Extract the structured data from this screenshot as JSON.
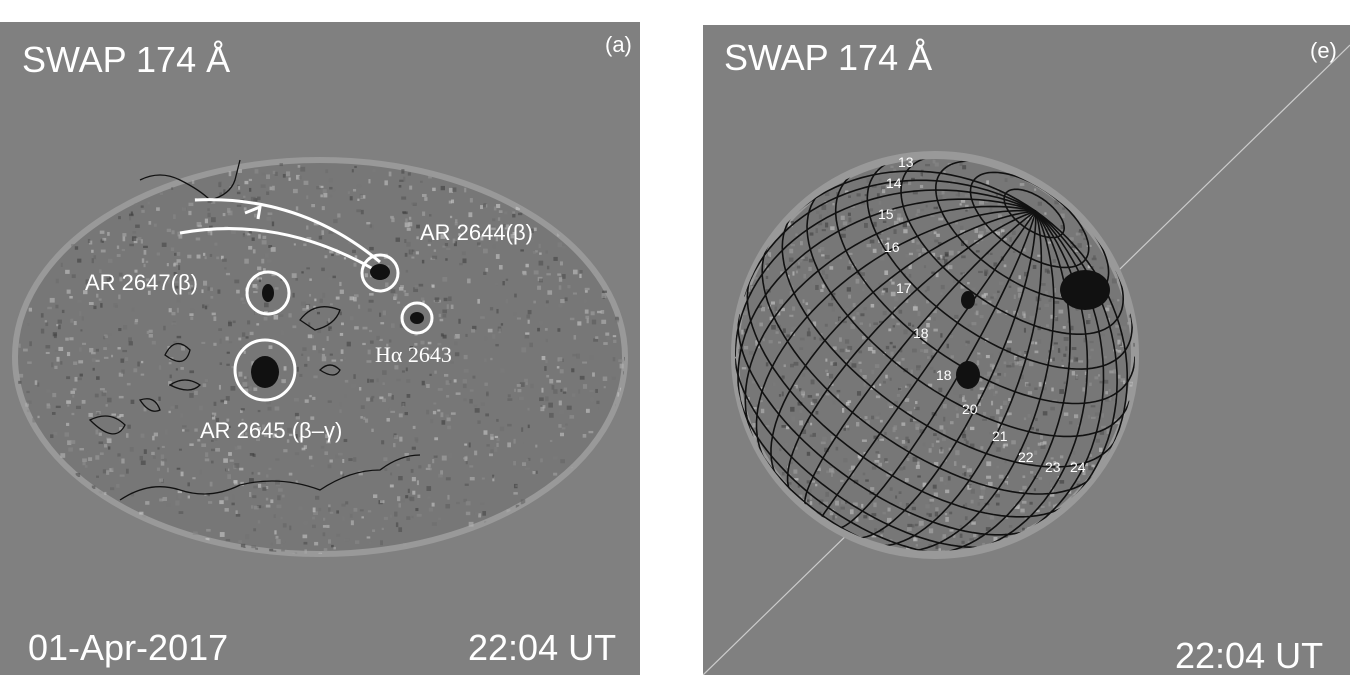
{
  "panel_a": {
    "title": "SWAP 174 Å",
    "label": "(a)",
    "date": "01-Apr-2017",
    "time": "22:04 UT",
    "regions": [
      "AR 2644(β)",
      "AR 2647(β)",
      "Hα 2643",
      "AR 2645 (β–γ)"
    ]
  },
  "panel_e": {
    "title": "SWAP 174 Å",
    "label": "(e)",
    "time": "22:04 UT",
    "grid_numbers": [
      "13",
      "14",
      "15",
      "16",
      "17",
      "18",
      "18",
      "20",
      "21",
      "22",
      "23",
      "24"
    ]
  }
}
